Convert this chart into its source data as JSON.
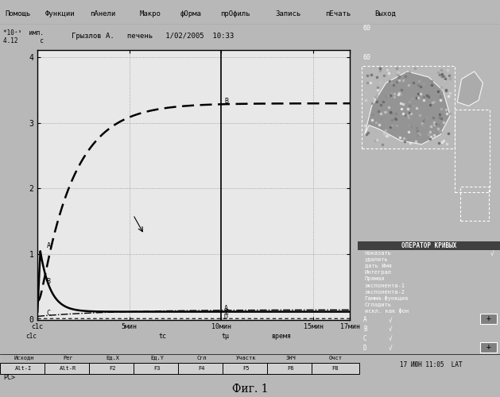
{
  "fig_width": 6.29,
  "fig_height": 5.0,
  "bg_color": "#b8b8b8",
  "menu_bg": "#c0c0c0",
  "plot_bg": "#e8e8e8",
  "panel_bg": "#000000",
  "info_bg": "#c8c8c8",
  "status_bg": "#c0c0c0",
  "button_bg": "#d0d0d0",
  "menu_items": [
    "Помощь",
    "Функции",
    "пАнели",
    "Макро",
    "фОрма",
    "прОфиль",
    "Запись",
    "пЕчать",
    "Выход"
  ],
  "menu_x": [
    0.01,
    0.09,
    0.18,
    0.28,
    0.36,
    0.44,
    0.55,
    0.65,
    0.75
  ],
  "info_text": "Грызлов А.   печень   1/02/2005  10:33",
  "operator_title": "ОПЕРАТОР КРИВЫХ",
  "operator_items": [
    "показать",
    "удалить",
    "дать Имя",
    "Интеграл",
    "Прямая",
    "экспонента-1",
    "экспонента-2",
    "Гамма-функция",
    "Сгладить",
    "искл. как фон"
  ],
  "status_items": [
    "Исходн",
    "Рег",
    "Ед.Х",
    "Ед.Y",
    "Сгл",
    "Участк",
    "ЗНЧ",
    "Очст"
  ],
  "buttons": [
    "Alt-I",
    "Alt-R",
    "F2",
    "F3",
    "F4",
    "F5",
    "F6",
    "F8"
  ],
  "abcd": [
    "A",
    "B",
    "C",
    "D"
  ],
  "bottom_right": "17 ИЮН 11:05  LAT",
  "fig_label": "Фиг. 1",
  "yticks": [
    0,
    1,
    2,
    3,
    4
  ],
  "ylim": [
    0,
    4.12
  ],
  "xlim": [
    0,
    17
  ],
  "xtick_pos": [
    0,
    5,
    10,
    15,
    17
  ],
  "xtick_labels": [
    "с1с",
    "5мин",
    "10мин",
    "15мин",
    "17мин"
  ],
  "vline_x": 10
}
